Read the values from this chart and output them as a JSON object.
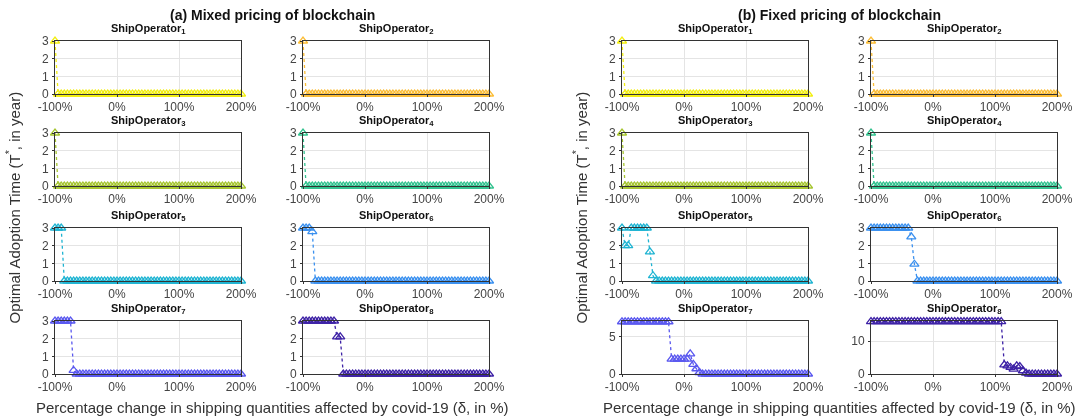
{
  "chart_data": [
    {
      "type": "line",
      "title": "ShipOperator$_{1}$",
      "annotations": [
        "(a) Mixed pricing of blockchain"
      ],
      "ylabel": "Optimal Adoption Time (T$^{*}$, in year)",
      "xlabel": "Percentage change in shipping quantities affected by covid-19 (δ, in %)",
      "marker": "triangle",
      "line_style": "dotted",
      "grid": true,
      "xlim": [
        -100,
        200
      ],
      "xticks": [
        {
          "value": -100,
          "label": "-100%"
        },
        {
          "value": 0,
          "label": "0%"
        },
        {
          "value": 100,
          "label": "100%"
        },
        {
          "value": 200,
          "label": "200%"
        }
      ],
      "ylim": [
        0,
        3
      ],
      "yticks": [
        0,
        1,
        2,
        3
      ],
      "x": [
        -100,
        -95,
        -90,
        -85,
        -80,
        -75,
        -70,
        -65,
        -60,
        -55,
        -50,
        -45,
        -40,
        -35,
        -30,
        -25,
        -20,
        -15,
        -10,
        -5,
        0,
        5,
        10,
        15,
        20,
        25,
        30,
        35,
        40,
        45,
        50,
        55,
        60,
        65,
        70,
        75,
        80,
        85,
        90,
        95,
        100,
        105,
        110,
        115,
        120,
        125,
        130,
        135,
        140,
        145,
        150,
        155,
        160,
        165,
        170,
        175,
        180,
        185,
        190,
        195,
        200
      ],
      "series": [
        {
          "color": "#f2ee12",
          "values": [
            3,
            0,
            0,
            0,
            0,
            0,
            0,
            0,
            0,
            0,
            0,
            0,
            0,
            0,
            0,
            0,
            0,
            0,
            0,
            0,
            0,
            0,
            0,
            0,
            0,
            0,
            0,
            0,
            0,
            0,
            0,
            0,
            0,
            0,
            0,
            0,
            0,
            0,
            0,
            0,
            0,
            0,
            0,
            0,
            0,
            0,
            0,
            0,
            0,
            0,
            0,
            0,
            0,
            0,
            0,
            0,
            0,
            0,
            0,
            0,
            0
          ]
        }
      ]
    },
    {
      "type": "line",
      "title": "ShipOperator$_{2}$",
      "marker": "triangle",
      "line_style": "dotted",
      "grid": true,
      "xlim": [
        -100,
        200
      ],
      "xticks": [
        {
          "value": -100,
          "label": "-100%"
        },
        {
          "value": 0,
          "label": "0%"
        },
        {
          "value": 100,
          "label": "100%"
        },
        {
          "value": 200,
          "label": "200%"
        }
      ],
      "ylim": [
        0,
        3
      ],
      "yticks": [
        0,
        1,
        2,
        3
      ],
      "x": [
        -100,
        -95,
        -90,
        -85,
        -80,
        -75,
        -70,
        -65,
        -60,
        -55,
        -50,
        -45,
        -40,
        -35,
        -30,
        -25,
        -20,
        -15,
        -10,
        -5,
        0,
        5,
        10,
        15,
        20,
        25,
        30,
        35,
        40,
        45,
        50,
        55,
        60,
        65,
        70,
        75,
        80,
        85,
        90,
        95,
        100,
        105,
        110,
        115,
        120,
        125,
        130,
        135,
        140,
        145,
        150,
        155,
        160,
        165,
        170,
        175,
        180,
        185,
        190,
        195,
        200
      ],
      "series": [
        {
          "color": "#fbbd37",
          "values": [
            3,
            0,
            0,
            0,
            0,
            0,
            0,
            0,
            0,
            0,
            0,
            0,
            0,
            0,
            0,
            0,
            0,
            0,
            0,
            0,
            0,
            0,
            0,
            0,
            0,
            0,
            0,
            0,
            0,
            0,
            0,
            0,
            0,
            0,
            0,
            0,
            0,
            0,
            0,
            0,
            0,
            0,
            0,
            0,
            0,
            0,
            0,
            0,
            0,
            0,
            0,
            0,
            0,
            0,
            0,
            0,
            0,
            0,
            0,
            0,
            0
          ]
        }
      ]
    },
    {
      "type": "line",
      "title": "ShipOperator$_{3}$",
      "marker": "triangle",
      "line_style": "dotted",
      "grid": true,
      "xlim": [
        -100,
        200
      ],
      "xticks": [
        {
          "value": -100,
          "label": "-100%"
        },
        {
          "value": 0,
          "label": "0%"
        },
        {
          "value": 100,
          "label": "100%"
        },
        {
          "value": 200,
          "label": "200%"
        }
      ],
      "ylim": [
        0,
        3
      ],
      "yticks": [
        0,
        1,
        2,
        3
      ],
      "x": [
        -100,
        -95,
        -90,
        -85,
        -80,
        -75,
        -70,
        -65,
        -60,
        -55,
        -50,
        -45,
        -40,
        -35,
        -30,
        -25,
        -20,
        -15,
        -10,
        -5,
        0,
        5,
        10,
        15,
        20,
        25,
        30,
        35,
        40,
        45,
        50,
        55,
        60,
        65,
        70,
        75,
        80,
        85,
        90,
        95,
        100,
        105,
        110,
        115,
        120,
        125,
        130,
        135,
        140,
        145,
        150,
        155,
        160,
        165,
        170,
        175,
        180,
        185,
        190,
        195,
        200
      ],
      "series": [
        {
          "color": "#a6c530",
          "values": [
            3,
            0,
            0,
            0,
            0,
            0,
            0,
            0,
            0,
            0,
            0,
            0,
            0,
            0,
            0,
            0,
            0,
            0,
            0,
            0,
            0,
            0,
            0,
            0,
            0,
            0,
            0,
            0,
            0,
            0,
            0,
            0,
            0,
            0,
            0,
            0,
            0,
            0,
            0,
            0,
            0,
            0,
            0,
            0,
            0,
            0,
            0,
            0,
            0,
            0,
            0,
            0,
            0,
            0,
            0,
            0,
            0,
            0,
            0,
            0,
            0
          ]
        }
      ]
    },
    {
      "type": "line",
      "title": "ShipOperator$_{4}$",
      "marker": "triangle",
      "line_style": "dotted",
      "grid": true,
      "xlim": [
        -100,
        200
      ],
      "xticks": [
        {
          "value": -100,
          "label": "-100%"
        },
        {
          "value": 0,
          "label": "0%"
        },
        {
          "value": 100,
          "label": "100%"
        },
        {
          "value": 200,
          "label": "200%"
        }
      ],
      "ylim": [
        0,
        3
      ],
      "yticks": [
        0,
        1,
        2,
        3
      ],
      "x": [
        -100,
        -95,
        -90,
        -85,
        -80,
        -75,
        -70,
        -65,
        -60,
        -55,
        -50,
        -45,
        -40,
        -35,
        -30,
        -25,
        -20,
        -15,
        -10,
        -5,
        0,
        5,
        10,
        15,
        20,
        25,
        30,
        35,
        40,
        45,
        50,
        55,
        60,
        65,
        70,
        75,
        80,
        85,
        90,
        95,
        100,
        105,
        110,
        115,
        120,
        125,
        130,
        135,
        140,
        145,
        150,
        155,
        160,
        165,
        170,
        175,
        180,
        185,
        190,
        195,
        200
      ],
      "series": [
        {
          "color": "#33c28f",
          "values": [
            3,
            0,
            0,
            0,
            0,
            0,
            0,
            0,
            0,
            0,
            0,
            0,
            0,
            0,
            0,
            0,
            0,
            0,
            0,
            0,
            0,
            0,
            0,
            0,
            0,
            0,
            0,
            0,
            0,
            0,
            0,
            0,
            0,
            0,
            0,
            0,
            0,
            0,
            0,
            0,
            0,
            0,
            0,
            0,
            0,
            0,
            0,
            0,
            0,
            0,
            0,
            0,
            0,
            0,
            0,
            0,
            0,
            0,
            0,
            0,
            0
          ]
        }
      ]
    },
    {
      "type": "line",
      "title": "ShipOperator$_{5}$",
      "marker": "triangle",
      "line_style": "dotted",
      "grid": true,
      "xlim": [
        -100,
        200
      ],
      "xticks": [
        {
          "value": -100,
          "label": "-100%"
        },
        {
          "value": 0,
          "label": "0%"
        },
        {
          "value": 100,
          "label": "100%"
        },
        {
          "value": 200,
          "label": "200%"
        }
      ],
      "ylim": [
        0,
        3
      ],
      "yticks": [
        0,
        1,
        2,
        3
      ],
      "x": [
        -100,
        -95,
        -90,
        -85,
        -80,
        -75,
        -70,
        -65,
        -60,
        -55,
        -50,
        -45,
        -40,
        -35,
        -30,
        -25,
        -20,
        -15,
        -10,
        -5,
        0,
        5,
        10,
        15,
        20,
        25,
        30,
        35,
        40,
        45,
        50,
        55,
        60,
        65,
        70,
        75,
        80,
        85,
        90,
        95,
        100,
        105,
        110,
        115,
        120,
        125,
        130,
        135,
        140,
        145,
        150,
        155,
        160,
        165,
        170,
        175,
        180,
        185,
        190,
        195,
        200
      ],
      "series": [
        {
          "color": "#1fb4d2",
          "values": [
            3,
            3,
            3,
            0,
            0,
            0,
            0,
            0,
            0,
            0,
            0,
            0,
            0,
            0,
            0,
            0,
            0,
            0,
            0,
            0,
            0,
            0,
            0,
            0,
            0,
            0,
            0,
            0,
            0,
            0,
            0,
            0,
            0,
            0,
            0,
            0,
            0,
            0,
            0,
            0,
            0,
            0,
            0,
            0,
            0,
            0,
            0,
            0,
            0,
            0,
            0,
            0,
            0,
            0,
            0,
            0,
            0,
            0,
            0,
            0,
            0
          ]
        }
      ]
    },
    {
      "type": "line",
      "title": "ShipOperator$_{6}$",
      "marker": "triangle",
      "line_style": "dotted",
      "grid": true,
      "xlim": [
        -100,
        200
      ],
      "xticks": [
        {
          "value": -100,
          "label": "-100%"
        },
        {
          "value": 0,
          "label": "0%"
        },
        {
          "value": 100,
          "label": "100%"
        },
        {
          "value": 200,
          "label": "200%"
        }
      ],
      "ylim": [
        0,
        3
      ],
      "yticks": [
        0,
        1,
        2,
        3
      ],
      "x": [
        -100,
        -95,
        -90,
        -85,
        -80,
        -75,
        -70,
        -65,
        -60,
        -55,
        -50,
        -45,
        -40,
        -35,
        -30,
        -25,
        -20,
        -15,
        -10,
        -5,
        0,
        5,
        10,
        15,
        20,
        25,
        30,
        35,
        40,
        45,
        50,
        55,
        60,
        65,
        70,
        75,
        80,
        85,
        90,
        95,
        100,
        105,
        110,
        115,
        120,
        125,
        130,
        135,
        140,
        145,
        150,
        155,
        160,
        165,
        170,
        175,
        180,
        185,
        190,
        195,
        200
      ],
      "series": [
        {
          "color": "#3a90ef",
          "values": [
            3,
            3,
            3,
            2.8,
            0,
            0,
            0,
            0,
            0,
            0,
            0,
            0,
            0,
            0,
            0,
            0,
            0,
            0,
            0,
            0,
            0,
            0,
            0,
            0,
            0,
            0,
            0,
            0,
            0,
            0,
            0,
            0,
            0,
            0,
            0,
            0,
            0,
            0,
            0,
            0,
            0,
            0,
            0,
            0,
            0,
            0,
            0,
            0,
            0,
            0,
            0,
            0,
            0,
            0,
            0,
            0,
            0,
            0,
            0,
            0,
            0
          ]
        }
      ]
    },
    {
      "type": "line",
      "title": "ShipOperator$_{7}$",
      "marker": "triangle",
      "line_style": "dotted",
      "grid": true,
      "xlim": [
        -100,
        200
      ],
      "xticks": [
        {
          "value": -100,
          "label": "-100%"
        },
        {
          "value": 0,
          "label": "0%"
        },
        {
          "value": 100,
          "label": "100%"
        },
        {
          "value": 200,
          "label": "200%"
        }
      ],
      "ylim": [
        0,
        3
      ],
      "yticks": [
        0,
        1,
        2,
        3
      ],
      "x": [
        -100,
        -95,
        -90,
        -85,
        -80,
        -75,
        -70,
        -65,
        -60,
        -55,
        -50,
        -45,
        -40,
        -35,
        -30,
        -25,
        -20,
        -15,
        -10,
        -5,
        0,
        5,
        10,
        15,
        20,
        25,
        30,
        35,
        40,
        45,
        50,
        55,
        60,
        65,
        70,
        75,
        80,
        85,
        90,
        95,
        100,
        105,
        110,
        115,
        120,
        125,
        130,
        135,
        140,
        145,
        150,
        155,
        160,
        165,
        170,
        175,
        180,
        185,
        190,
        195,
        200
      ],
      "series": [
        {
          "color": "#5a58ef",
          "values": [
            3,
            3,
            3,
            3,
            3,
            3,
            0.2,
            0,
            0,
            0,
            0,
            0,
            0,
            0,
            0,
            0,
            0,
            0,
            0,
            0,
            0,
            0,
            0,
            0,
            0,
            0,
            0,
            0,
            0,
            0,
            0,
            0,
            0,
            0,
            0,
            0,
            0,
            0,
            0,
            0,
            0,
            0,
            0,
            0,
            0,
            0,
            0,
            0,
            0,
            0,
            0,
            0,
            0,
            0,
            0,
            0,
            0,
            0,
            0,
            0,
            0
          ]
        }
      ]
    },
    {
      "type": "line",
      "title": "ShipOperator$_{8}$",
      "marker": "triangle",
      "line_style": "dotted",
      "grid": true,
      "xlim": [
        -100,
        200
      ],
      "xticks": [
        {
          "value": -100,
          "label": "-100%"
        },
        {
          "value": 0,
          "label": "0%"
        },
        {
          "value": 100,
          "label": "100%"
        },
        {
          "value": 200,
          "label": "200%"
        }
      ],
      "ylim": [
        0,
        3
      ],
      "yticks": [
        0,
        1,
        2,
        3
      ],
      "x": [
        -100,
        -95,
        -90,
        -85,
        -80,
        -75,
        -70,
        -65,
        -60,
        -55,
        -50,
        -45,
        -40,
        -35,
        -30,
        -25,
        -20,
        -15,
        -10,
        -5,
        0,
        5,
        10,
        15,
        20,
        25,
        30,
        35,
        40,
        45,
        50,
        55,
        60,
        65,
        70,
        75,
        80,
        85,
        90,
        95,
        100,
        105,
        110,
        115,
        120,
        125,
        130,
        135,
        140,
        145,
        150,
        155,
        160,
        165,
        170,
        175,
        180,
        185,
        190,
        195,
        200
      ],
      "series": [
        {
          "color": "#3e22a6",
          "values": [
            3,
            3,
            3,
            3,
            3,
            3,
            3,
            3,
            3,
            3,
            3,
            2.1,
            2.1,
            0,
            0,
            0,
            0,
            0,
            0,
            0,
            0,
            0,
            0,
            0,
            0,
            0,
            0,
            0,
            0,
            0,
            0,
            0,
            0,
            0,
            0,
            0,
            0,
            0,
            0,
            0,
            0,
            0,
            0,
            0,
            0,
            0,
            0,
            0,
            0,
            0,
            0,
            0,
            0,
            0,
            0,
            0,
            0,
            0,
            0,
            0,
            0
          ]
        }
      ]
    },
    {
      "type": "line",
      "title": "ShipOperator$_{1}$",
      "annotations": [
        "(b) Fixed pricing of blockchain"
      ],
      "ylabel": "Optimal Adoption Time (T$^{*}$, in year)",
      "xlabel": "Percentage change in shipping quantities affected by covid-19 (δ, in %)",
      "marker": "triangle",
      "line_style": "dotted",
      "grid": true,
      "xlim": [
        -100,
        200
      ],
      "xticks": [
        {
          "value": -100,
          "label": "-100%"
        },
        {
          "value": 0,
          "label": "0%"
        },
        {
          "value": 100,
          "label": "100%"
        },
        {
          "value": 200,
          "label": "200%"
        }
      ],
      "ylim": [
        0,
        3
      ],
      "yticks": [
        0,
        1,
        2,
        3
      ],
      "x": [
        -100,
        -95,
        -90,
        -85,
        -80,
        -75,
        -70,
        -65,
        -60,
        -55,
        -50,
        -45,
        -40,
        -35,
        -30,
        -25,
        -20,
        -15,
        -10,
        -5,
        0,
        5,
        10,
        15,
        20,
        25,
        30,
        35,
        40,
        45,
        50,
        55,
        60,
        65,
        70,
        75,
        80,
        85,
        90,
        95,
        100,
        105,
        110,
        115,
        120,
        125,
        130,
        135,
        140,
        145,
        150,
        155,
        160,
        165,
        170,
        175,
        180,
        185,
        190,
        195,
        200
      ],
      "series": [
        {
          "color": "#f2ee12",
          "values": [
            3,
            0,
            0,
            0,
            0,
            0,
            0,
            0,
            0,
            0,
            0,
            0,
            0,
            0,
            0,
            0,
            0,
            0,
            0,
            0,
            0,
            0,
            0,
            0,
            0,
            0,
            0,
            0,
            0,
            0,
            0,
            0,
            0,
            0,
            0,
            0,
            0,
            0,
            0,
            0,
            0,
            0,
            0,
            0,
            0,
            0,
            0,
            0,
            0,
            0,
            0,
            0,
            0,
            0,
            0,
            0,
            0,
            0,
            0,
            0,
            0
          ]
        }
      ]
    },
    {
      "type": "line",
      "title": "ShipOperator$_{2}$",
      "marker": "triangle",
      "line_style": "dotted",
      "grid": true,
      "xlim": [
        -100,
        200
      ],
      "xticks": [
        {
          "value": -100,
          "label": "-100%"
        },
        {
          "value": 0,
          "label": "0%"
        },
        {
          "value": 100,
          "label": "100%"
        },
        {
          "value": 200,
          "label": "200%"
        }
      ],
      "ylim": [
        0,
        3
      ],
      "yticks": [
        0,
        1,
        2,
        3
      ],
      "x": [
        -100,
        -95,
        -90,
        -85,
        -80,
        -75,
        -70,
        -65,
        -60,
        -55,
        -50,
        -45,
        -40,
        -35,
        -30,
        -25,
        -20,
        -15,
        -10,
        -5,
        0,
        5,
        10,
        15,
        20,
        25,
        30,
        35,
        40,
        45,
        50,
        55,
        60,
        65,
        70,
        75,
        80,
        85,
        90,
        95,
        100,
        105,
        110,
        115,
        120,
        125,
        130,
        135,
        140,
        145,
        150,
        155,
        160,
        165,
        170,
        175,
        180,
        185,
        190,
        195,
        200
      ],
      "series": [
        {
          "color": "#fbbd37",
          "values": [
            3,
            0,
            0,
            0,
            0,
            0,
            0,
            0,
            0,
            0,
            0,
            0,
            0,
            0,
            0,
            0,
            0,
            0,
            0,
            0,
            0,
            0,
            0,
            0,
            0,
            0,
            0,
            0,
            0,
            0,
            0,
            0,
            0,
            0,
            0,
            0,
            0,
            0,
            0,
            0,
            0,
            0,
            0,
            0,
            0,
            0,
            0,
            0,
            0,
            0,
            0,
            0,
            0,
            0,
            0,
            0,
            0,
            0,
            0,
            0,
            0
          ]
        }
      ]
    },
    {
      "type": "line",
      "title": "ShipOperator$_{3}$",
      "marker": "triangle",
      "line_style": "dotted",
      "grid": true,
      "xlim": [
        -100,
        200
      ],
      "xticks": [
        {
          "value": -100,
          "label": "-100%"
        },
        {
          "value": 0,
          "label": "0%"
        },
        {
          "value": 100,
          "label": "100%"
        },
        {
          "value": 200,
          "label": "200%"
        }
      ],
      "ylim": [
        0,
        3
      ],
      "yticks": [
        0,
        1,
        2,
        3
      ],
      "x": [
        -100,
        -95,
        -90,
        -85,
        -80,
        -75,
        -70,
        -65,
        -60,
        -55,
        -50,
        -45,
        -40,
        -35,
        -30,
        -25,
        -20,
        -15,
        -10,
        -5,
        0,
        5,
        10,
        15,
        20,
        25,
        30,
        35,
        40,
        45,
        50,
        55,
        60,
        65,
        70,
        75,
        80,
        85,
        90,
        95,
        100,
        105,
        110,
        115,
        120,
        125,
        130,
        135,
        140,
        145,
        150,
        155,
        160,
        165,
        170,
        175,
        180,
        185,
        190,
        195,
        200
      ],
      "series": [
        {
          "color": "#a6c530",
          "values": [
            3,
            0,
            0,
            0,
            0,
            0,
            0,
            0,
            0,
            0,
            0,
            0,
            0,
            0,
            0,
            0,
            0,
            0,
            0,
            0,
            0,
            0,
            0,
            0,
            0,
            0,
            0,
            0,
            0,
            0,
            0,
            0,
            0,
            0,
            0,
            0,
            0,
            0,
            0,
            0,
            0,
            0,
            0,
            0,
            0,
            0,
            0,
            0,
            0,
            0,
            0,
            0,
            0,
            0,
            0,
            0,
            0,
            0,
            0,
            0,
            0
          ]
        }
      ]
    },
    {
      "type": "line",
      "title": "ShipOperator$_{4}$",
      "marker": "triangle",
      "line_style": "dotted",
      "grid": true,
      "xlim": [
        -100,
        200
      ],
      "xticks": [
        {
          "value": -100,
          "label": "-100%"
        },
        {
          "value": 0,
          "label": "0%"
        },
        {
          "value": 100,
          "label": "100%"
        },
        {
          "value": 200,
          "label": "200%"
        }
      ],
      "ylim": [
        0,
        3
      ],
      "yticks": [
        0,
        1,
        2,
        3
      ],
      "x": [
        -100,
        -95,
        -90,
        -85,
        -80,
        -75,
        -70,
        -65,
        -60,
        -55,
        -50,
        -45,
        -40,
        -35,
        -30,
        -25,
        -20,
        -15,
        -10,
        -5,
        0,
        5,
        10,
        15,
        20,
        25,
        30,
        35,
        40,
        45,
        50,
        55,
        60,
        65,
        70,
        75,
        80,
        85,
        90,
        95,
        100,
        105,
        110,
        115,
        120,
        125,
        130,
        135,
        140,
        145,
        150,
        155,
        160,
        165,
        170,
        175,
        180,
        185,
        190,
        195,
        200
      ],
      "series": [
        {
          "color": "#33c28f",
          "values": [
            3,
            0,
            0,
            0,
            0,
            0,
            0,
            0,
            0,
            0,
            0,
            0,
            0,
            0,
            0,
            0,
            0,
            0,
            0,
            0,
            0,
            0,
            0,
            0,
            0,
            0,
            0,
            0,
            0,
            0,
            0,
            0,
            0,
            0,
            0,
            0,
            0,
            0,
            0,
            0,
            0,
            0,
            0,
            0,
            0,
            0,
            0,
            0,
            0,
            0,
            0,
            0,
            0,
            0,
            0,
            0,
            0,
            0,
            0,
            0,
            0
          ]
        }
      ]
    },
    {
      "type": "line",
      "title": "ShipOperator$_{5}$",
      "marker": "triangle",
      "line_style": "dotted",
      "grid": true,
      "xlim": [
        -100,
        200
      ],
      "xticks": [
        {
          "value": -100,
          "label": "-100%"
        },
        {
          "value": 0,
          "label": "0%"
        },
        {
          "value": 100,
          "label": "100%"
        },
        {
          "value": 200,
          "label": "200%"
        }
      ],
      "ylim": [
        0,
        3
      ],
      "yticks": [
        0,
        1,
        2,
        3
      ],
      "x": [
        -100,
        -95,
        -90,
        -85,
        -80,
        -75,
        -70,
        -65,
        -60,
        -55,
        -50,
        -45,
        -40,
        -35,
        -30,
        -25,
        -20,
        -15,
        -10,
        -5,
        0,
        5,
        10,
        15,
        20,
        25,
        30,
        35,
        40,
        45,
        50,
        55,
        60,
        65,
        70,
        75,
        80,
        85,
        90,
        95,
        100,
        105,
        110,
        115,
        120,
        125,
        130,
        135,
        140,
        145,
        150,
        155,
        160,
        165,
        170,
        175,
        180,
        185,
        190,
        195,
        200
      ],
      "series": [
        {
          "color": "#1fb4d2",
          "values": [
            3,
            2,
            2,
            3,
            3,
            3,
            3,
            3,
            3,
            1.65,
            0.3,
            0,
            0,
            0,
            0,
            0,
            0,
            0,
            0,
            0,
            0,
            0,
            0,
            0,
            0,
            0,
            0,
            0,
            0,
            0,
            0,
            0,
            0,
            0,
            0,
            0,
            0,
            0,
            0,
            0,
            0,
            0,
            0,
            0,
            0,
            0,
            0,
            0,
            0,
            0,
            0,
            0,
            0,
            0,
            0,
            0,
            0,
            0,
            0,
            0,
            0
          ]
        }
      ]
    },
    {
      "type": "line",
      "title": "ShipOperator$_{6}$",
      "marker": "triangle",
      "line_style": "dotted",
      "grid": true,
      "xlim": [
        -100,
        200
      ],
      "xticks": [
        {
          "value": -100,
          "label": "-100%"
        },
        {
          "value": 0,
          "label": "0%"
        },
        {
          "value": 100,
          "label": "100%"
        },
        {
          "value": 200,
          "label": "200%"
        }
      ],
      "ylim": [
        0,
        3
      ],
      "yticks": [
        0,
        1,
        2,
        3
      ],
      "x": [
        -100,
        -95,
        -90,
        -85,
        -80,
        -75,
        -70,
        -65,
        -60,
        -55,
        -50,
        -45,
        -40,
        -35,
        -30,
        -25,
        -20,
        -15,
        -10,
        -5,
        0,
        5,
        10,
        15,
        20,
        25,
        30,
        35,
        40,
        45,
        50,
        55,
        60,
        65,
        70,
        75,
        80,
        85,
        90,
        95,
        100,
        105,
        110,
        115,
        120,
        125,
        130,
        135,
        140,
        145,
        150,
        155,
        160,
        165,
        170,
        175,
        180,
        185,
        190,
        195,
        200
      ],
      "series": [
        {
          "color": "#3a90ef",
          "values": [
            3,
            3,
            3,
            3,
            3,
            3,
            3,
            3,
            3,
            3,
            3,
            3,
            3,
            2.5,
            0.95,
            0,
            0,
            0,
            0,
            0,
            0,
            0,
            0,
            0,
            0,
            0,
            0,
            0,
            0,
            0,
            0,
            0,
            0,
            0,
            0,
            0,
            0,
            0,
            0,
            0,
            0,
            0,
            0,
            0,
            0,
            0,
            0,
            0,
            0,
            0,
            0,
            0,
            0,
            0,
            0,
            0,
            0,
            0,
            0,
            0,
            0
          ]
        }
      ]
    },
    {
      "type": "line",
      "title": "ShipOperator$_{7}$",
      "marker": "triangle",
      "line_style": "dotted",
      "grid": true,
      "xlim": [
        -100,
        200
      ],
      "xticks": [
        {
          "value": -100,
          "label": "-100%"
        },
        {
          "value": 0,
          "label": "0%"
        },
        {
          "value": 100,
          "label": "100%"
        },
        {
          "value": 200,
          "label": "200%"
        }
      ],
      "ylim": [
        0,
        7.1
      ],
      "yticks": [
        0,
        5
      ],
      "x": [
        -100,
        -95,
        -90,
        -85,
        -80,
        -75,
        -70,
        -65,
        -60,
        -55,
        -50,
        -45,
        -40,
        -35,
        -30,
        -25,
        -20,
        -15,
        -10,
        -5,
        0,
        5,
        10,
        15,
        20,
        25,
        30,
        35,
        40,
        45,
        50,
        55,
        60,
        65,
        70,
        75,
        80,
        85,
        90,
        95,
        100,
        105,
        110,
        115,
        120,
        125,
        130,
        135,
        140,
        145,
        150,
        155,
        160,
        165,
        170,
        175,
        180,
        185,
        190,
        195,
        200
      ],
      "series": [
        {
          "color": "#5a58ef",
          "values": [
            7,
            7,
            7,
            7,
            7,
            7,
            7,
            7,
            7,
            7,
            7,
            7,
            7,
            7,
            7,
            7,
            2,
            2,
            2,
            2,
            2,
            2,
            2.7,
            1.3,
            0.7,
            0.2,
            0,
            0,
            0,
            0,
            0,
            0,
            0,
            0,
            0,
            0,
            0,
            0,
            0,
            0,
            0,
            0,
            0,
            0,
            0,
            0,
            0,
            0,
            0,
            0,
            0,
            0,
            0,
            0,
            0,
            0,
            0,
            0,
            0,
            0,
            0
          ]
        }
      ]
    },
    {
      "type": "line",
      "title": "ShipOperator$_{8}$",
      "marker": "triangle",
      "line_style": "dotted",
      "grid": true,
      "xlim": [
        -100,
        200
      ],
      "xticks": [
        {
          "value": -100,
          "label": "-100%"
        },
        {
          "value": 0,
          "label": "0%"
        },
        {
          "value": 100,
          "label": "100%"
        },
        {
          "value": 200,
          "label": "200%"
        }
      ],
      "ylim": [
        0,
        16.2
      ],
      "yticks": [
        0,
        10
      ],
      "x": [
        -100,
        -95,
        -90,
        -85,
        -80,
        -75,
        -70,
        -65,
        -60,
        -55,
        -50,
        -45,
        -40,
        -35,
        -30,
        -25,
        -20,
        -15,
        -10,
        -5,
        0,
        5,
        10,
        15,
        20,
        25,
        30,
        35,
        40,
        45,
        50,
        55,
        60,
        65,
        70,
        75,
        80,
        85,
        90,
        95,
        100,
        105,
        110,
        115,
        120,
        125,
        130,
        135,
        140,
        145,
        150,
        155,
        160,
        165,
        170,
        175,
        180,
        185,
        190,
        195,
        200
      ],
      "series": [
        {
          "color": "#3e22a6",
          "values": [
            16,
            16,
            16,
            16,
            16,
            16,
            16,
            16,
            16,
            16,
            16,
            16,
            16,
            16,
            16,
            16,
            16,
            16,
            16,
            16,
            16,
            16,
            16,
            16,
            16,
            16,
            16,
            16,
            16,
            16,
            16,
            16,
            16,
            16,
            16,
            16,
            16,
            16,
            16,
            16,
            16,
            16,
            16,
            2.8,
            2.5,
            2,
            1.5,
            2.5,
            2.3,
            1,
            0.3,
            0,
            0,
            0,
            0,
            0,
            0,
            0,
            0,
            0,
            0
          ]
        }
      ]
    }
  ]
}
